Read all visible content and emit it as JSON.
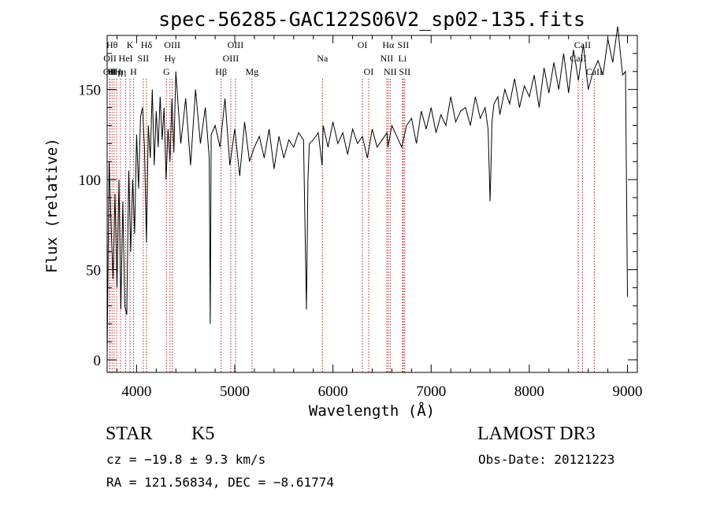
{
  "chart_data": {
    "type": "line",
    "title": "spec-56285-GAC122S06V2_sp02-135.fits",
    "xlabel": "Wavelength (Å)",
    "ylabel": "Flux (relative)",
    "xlim": [
      3700,
      9100
    ],
    "ylim": [
      -7,
      180
    ],
    "xticks": [
      4000,
      5000,
      6000,
      7000,
      8000,
      9000
    ],
    "yticks": [
      0,
      50,
      100,
      150
    ],
    "grid": false,
    "series": [
      {
        "name": "flux",
        "x": [
          3700,
          3720,
          3740,
          3760,
          3780,
          3800,
          3820,
          3840,
          3860,
          3880,
          3900,
          3920,
          3940,
          3960,
          3980,
          4000,
          4020,
          4040,
          4060,
          4080,
          4100,
          4120,
          4140,
          4160,
          4180,
          4200,
          4220,
          4240,
          4260,
          4280,
          4300,
          4320,
          4340,
          4360,
          4380,
          4400,
          4450,
          4500,
          4550,
          4600,
          4650,
          4700,
          4740,
          4750,
          4760,
          4800,
          4850,
          4900,
          4950,
          5000,
          5050,
          5100,
          5150,
          5200,
          5250,
          5300,
          5350,
          5400,
          5450,
          5500,
          5550,
          5600,
          5650,
          5700,
          5730,
          5745,
          5760,
          5800,
          5850,
          5890,
          5900,
          5950,
          6000,
          6050,
          6100,
          6150,
          6200,
          6250,
          6300,
          6350,
          6400,
          6450,
          6500,
          6550,
          6560,
          6600,
          6650,
          6700,
          6750,
          6800,
          6850,
          6900,
          6950,
          7000,
          7050,
          7100,
          7150,
          7200,
          7250,
          7300,
          7350,
          7400,
          7450,
          7500,
          7550,
          7580,
          7600,
          7610,
          7620,
          7640,
          7680,
          7700,
          7750,
          7800,
          7850,
          7900,
          7950,
          8000,
          8050,
          8100,
          8150,
          8200,
          8250,
          8300,
          8350,
          8400,
          8450,
          8500,
          8550,
          8600,
          8650,
          8700,
          8750,
          8800,
          8850,
          8900,
          8950,
          8980,
          9000
        ],
        "values": [
          2,
          110,
          75,
          45,
          92,
          40,
          100,
          28,
          88,
          30,
          25,
          105,
          60,
          100,
          70,
          125,
          95,
          135,
          140,
          118,
          65,
          130,
          112,
          150,
          108,
          138,
          118,
          146,
          122,
          140,
          100,
          128,
          110,
          145,
          115,
          160,
          120,
          145,
          108,
          150,
          120,
          140,
          112,
          20,
          125,
          130,
          118,
          145,
          108,
          128,
          102,
          132,
          110,
          118,
          124,
          112,
          128,
          106,
          124,
          112,
          122,
          118,
          126,
          122,
          28,
          100,
          120,
          122,
          126,
          108,
          130,
          118,
          132,
          120,
          126,
          114,
          128,
          120,
          124,
          112,
          128,
          118,
          122,
          126,
          118,
          130,
          124,
          118,
          130,
          134,
          120,
          138,
          128,
          140,
          126,
          136,
          130,
          146,
          132,
          138,
          140,
          130,
          146,
          134,
          140,
          128,
          88,
          108,
          132,
          142,
          146,
          136,
          150,
          142,
          156,
          140,
          152,
          146,
          158,
          140,
          162,
          148,
          165,
          150,
          170,
          148,
          172,
          155,
          175,
          150,
          160,
          166,
          158,
          178,
          165,
          185,
          158,
          160,
          35
        ],
        "color": "#000000"
      }
    ],
    "lines": {
      "color": "#b22222",
      "items": [
        {
          "x": 3726,
          "label": "OII",
          "row": 2
        },
        {
          "x": 3729,
          "label": "OII",
          "row": 1
        },
        {
          "x": 3750,
          "label": "Hθ",
          "row": 0
        },
        {
          "x": 3771,
          "label": "Hη",
          "row": 2
        },
        {
          "x": 3798,
          "label": "Hη",
          "row": 2
        },
        {
          "x": 3835,
          "label": "Hη",
          "row": 2
        },
        {
          "x": 3889,
          "label": "HeI",
          "row": 1
        },
        {
          "x": 3933,
          "label": "K",
          "row": 0
        },
        {
          "x": 3968,
          "label": "H",
          "row": 2
        },
        {
          "x": 4068,
          "label": "SII",
          "row": 1
        },
        {
          "x": 4101,
          "label": "Hδ",
          "row": 0
        },
        {
          "x": 4304,
          "label": "G",
          "row": 2
        },
        {
          "x": 4340,
          "label": "Hγ",
          "row": 1
        },
        {
          "x": 4363,
          "label": "OIII",
          "row": 0
        },
        {
          "x": 4861,
          "label": "Hβ",
          "row": 2
        },
        {
          "x": 4959,
          "label": "OIII",
          "row": 1
        },
        {
          "x": 5007,
          "label": "OIII",
          "row": 0
        },
        {
          "x": 5175,
          "label": "Mg",
          "row": 2
        },
        {
          "x": 5893,
          "label": "Na",
          "row": 1
        },
        {
          "x": 6300,
          "label": "OI",
          "row": 0
        },
        {
          "x": 6364,
          "label": "OI",
          "row": 2
        },
        {
          "x": 6548,
          "label": "NII",
          "row": 1
        },
        {
          "x": 6563,
          "label": "Hα",
          "row": 0
        },
        {
          "x": 6583,
          "label": "NII",
          "row": 2
        },
        {
          "x": 6708,
          "label": "Li",
          "row": 1
        },
        {
          "x": 6716,
          "label": "SII",
          "row": 0
        },
        {
          "x": 6731,
          "label": "SII",
          "row": 2
        },
        {
          "x": 8498,
          "label": "CaII",
          "row": 1
        },
        {
          "x": 8542,
          "label": "CaII",
          "row": 0
        },
        {
          "x": 8662,
          "label": "CaII",
          "row": 2
        }
      ]
    }
  },
  "info": {
    "object_class": "STAR",
    "subclass": "K5",
    "velocity": "cz = −19.8 ± 9.3 km/s",
    "coordinates": "RA = 121.56834, DEC =  −8.61774",
    "survey": "LAMOST DR3",
    "obs_date": "Obs-Date: 20121223"
  }
}
